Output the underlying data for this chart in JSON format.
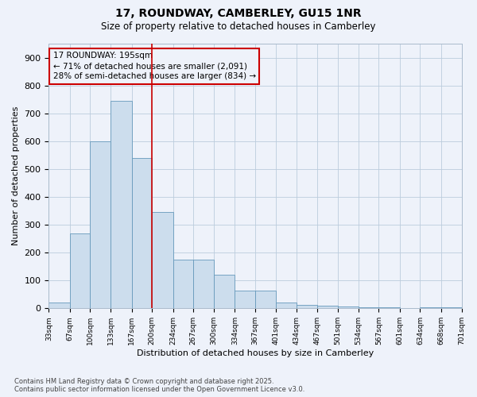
{
  "title1": "17, ROUNDWAY, CAMBERLEY, GU15 1NR",
  "title2": "Size of property relative to detached houses in Camberley",
  "xlabel": "Distribution of detached houses by size in Camberley",
  "ylabel": "Number of detached properties",
  "annotation_title": "17 ROUNDWAY: 195sqm",
  "annotation_line1": "← 71% of detached houses are smaller (2,091)",
  "annotation_line2": "28% of semi-detached houses are larger (834) →",
  "bar_edges": [
    33,
    67,
    100,
    133,
    167,
    200,
    234,
    267,
    300,
    334,
    367,
    401,
    434,
    467,
    501,
    534,
    567,
    601,
    634,
    668,
    701
  ],
  "bar_heights": [
    22,
    270,
    600,
    745,
    540,
    345,
    175,
    175,
    120,
    65,
    65,
    22,
    12,
    10,
    8,
    5,
    5,
    0,
    5,
    5
  ],
  "bar_color": "#ccdded",
  "bar_edge_color": "#6699bb",
  "vline_color": "#cc0000",
  "vline_x": 200,
  "annotation_box_color": "#cc0000",
  "grid_color": "#bbccdd",
  "background_color": "#eef2fa",
  "ylim": [
    0,
    950
  ],
  "yticks": [
    0,
    100,
    200,
    300,
    400,
    500,
    600,
    700,
    800,
    900
  ],
  "tick_labels": [
    "33sqm",
    "67sqm",
    "100sqm",
    "133sqm",
    "167sqm",
    "200sqm",
    "234sqm",
    "267sqm",
    "300sqm",
    "334sqm",
    "367sqm",
    "401sqm",
    "434sqm",
    "467sqm",
    "501sqm",
    "534sqm",
    "567sqm",
    "601sqm",
    "634sqm",
    "668sqm",
    "701sqm"
  ],
  "footer1": "Contains HM Land Registry data © Crown copyright and database right 2025.",
  "footer2": "Contains public sector information licensed under the Open Government Licence v3.0."
}
